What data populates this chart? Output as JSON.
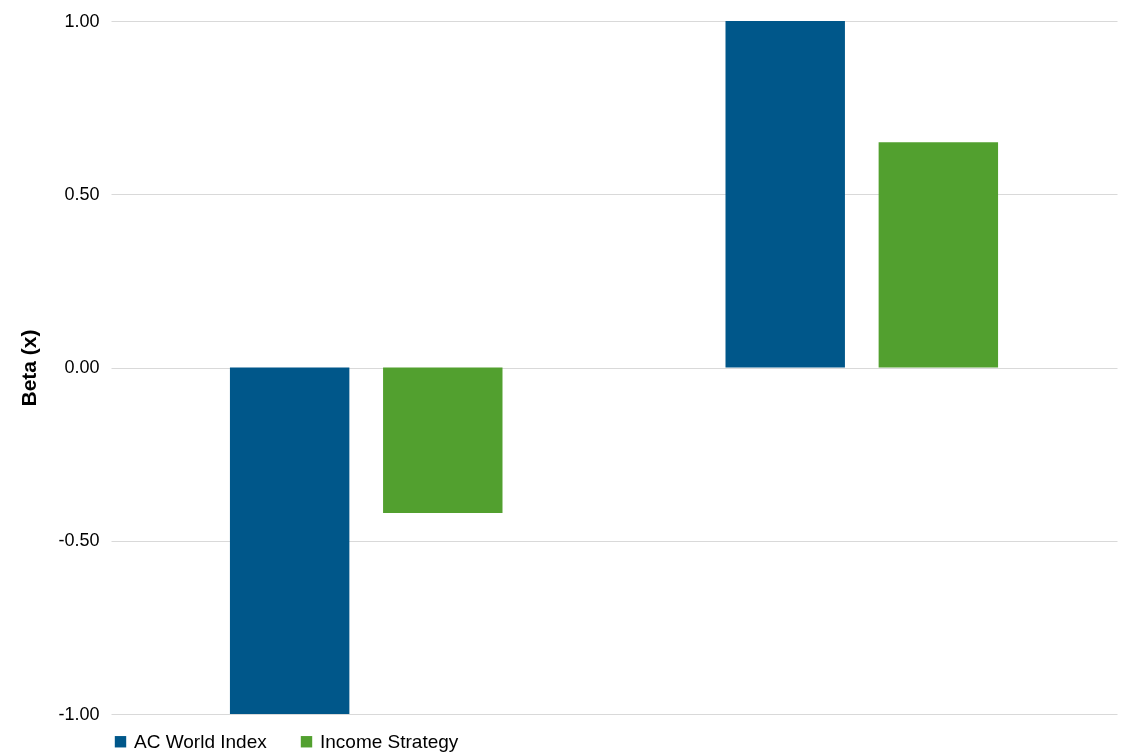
{
  "chart_data": {
    "type": "bar",
    "ylabel": "Beta (x)",
    "categories": [
      null,
      null
    ],
    "series": [
      {
        "name": "AC World Index",
        "color": "#00578a",
        "values": [
          -1.0,
          1.0
        ]
      },
      {
        "name": "Income Strategy",
        "color": "#52a02f",
        "values": [
          -0.42,
          0.65
        ]
      }
    ],
    "ylim": [
      -1,
      1
    ],
    "yticks": [
      {
        "value": -1,
        "label": "-1.00"
      },
      {
        "value": -0.5,
        "label": "-0.50"
      },
      {
        "value": 0,
        "label": "0.00"
      },
      {
        "value": 0.5,
        "label": "0.50"
      },
      {
        "value": 1,
        "label": "1.00"
      }
    ],
    "grid": "y",
    "legend": "bottom",
    "tick_labels": "y"
  }
}
